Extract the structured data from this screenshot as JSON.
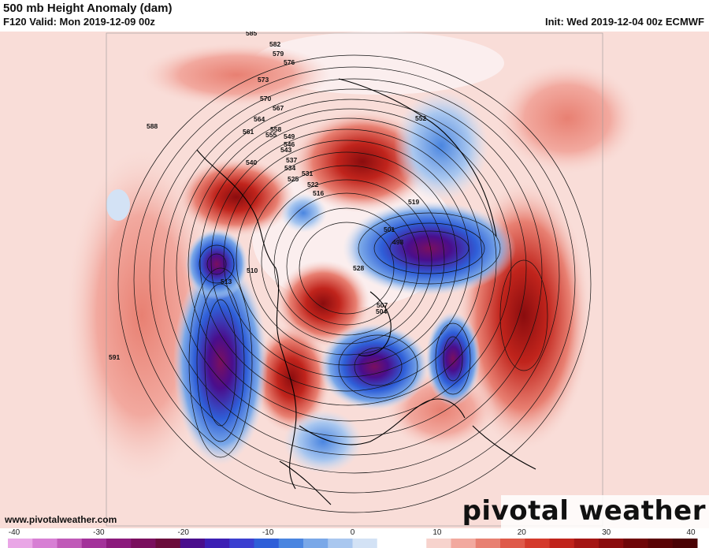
{
  "header": {
    "title": "500 mb Height Anomaly (dam)",
    "valid": "F120 Valid: Mon 2019-12-09 00z",
    "init": "Init: Wed 2019-12-04 00z ECMWF"
  },
  "footer": {
    "website": "www.pivotalweather.com",
    "brand": "pivotal weather"
  },
  "colorbar": {
    "ticks": [
      "-40",
      "-30",
      "-20",
      "-10",
      "0",
      "10",
      "20",
      "30",
      "40"
    ],
    "colors": [
      "#e9a6e6",
      "#d77fd4",
      "#c05ab8",
      "#a3329a",
      "#8b1a7c",
      "#7a0f5e",
      "#6b0c3c",
      "#4a0e8c",
      "#3c1fb4",
      "#3b3fd0",
      "#2f5fd8",
      "#4a85e0",
      "#7aa8e8",
      "#a9c7ef",
      "#d3e2f5",
      "#ffffff",
      "#ffffff",
      "#f7d3cd",
      "#f2a99f",
      "#e88072",
      "#df5a4a",
      "#d43a2c",
      "#c0241c",
      "#a41614",
      "#8a0c0e",
      "#6e0608",
      "#5a0406",
      "#4a0305"
    ]
  },
  "contour_labels": [
    "585",
    "582",
    "579",
    "576",
    "573",
    "570",
    "567",
    "564",
    "561",
    "558",
    "555",
    "552",
    "549",
    "546",
    "543",
    "540",
    "537",
    "534",
    "531",
    "528",
    "525",
    "522",
    "519",
    "516",
    "513",
    "510",
    "507",
    "504",
    "501",
    "588",
    "591",
    "498"
  ]
}
